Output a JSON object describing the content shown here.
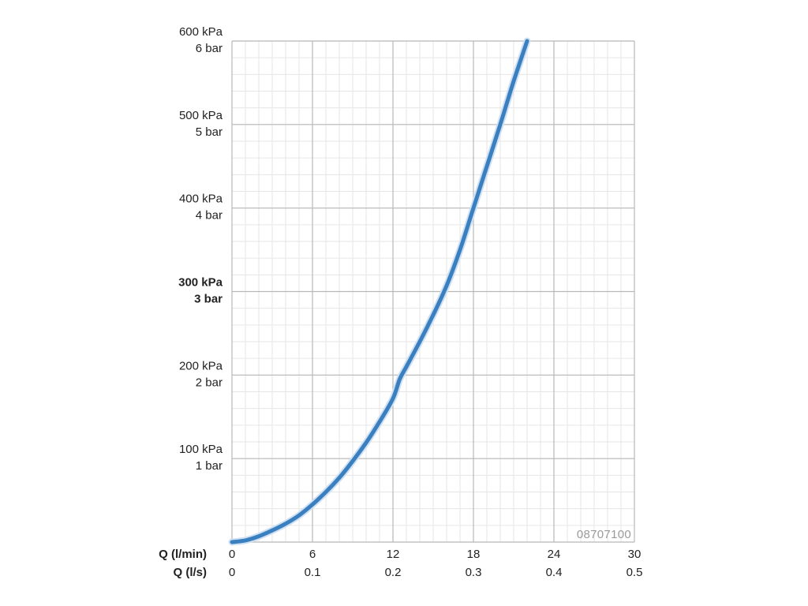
{
  "chart_data": {
    "type": "line",
    "y_tick_labels": [
      {
        "kpa": "",
        "bar": ""
      },
      {
        "kpa": "100 kPa",
        "bar": "1 bar"
      },
      {
        "kpa": "200 kPa",
        "bar": "2 bar"
      },
      {
        "kpa": "300 kPa",
        "bar": "3 bar",
        "bold": true
      },
      {
        "kpa": "400 kPa",
        "bar": "4 bar"
      },
      {
        "kpa": "500 kPa",
        "bar": "5 bar"
      },
      {
        "kpa": "600 kPa",
        "bar": "6 bar"
      }
    ],
    "y_values": [
      0,
      100,
      200,
      300,
      400,
      500,
      600
    ],
    "x_axis_primary": {
      "label": "Q (l/min)",
      "ticks": [
        "0",
        "6",
        "12",
        "18",
        "24",
        "30"
      ],
      "values": [
        0,
        6,
        12,
        18,
        24,
        30
      ]
    },
    "x_axis_secondary": {
      "label": "Q (l/s)",
      "ticks": [
        "0",
        "0.1",
        "0.2",
        "0.3",
        "0.4",
        "0.5"
      ]
    },
    "xlim": [
      0,
      30
    ],
    "ylim": [
      0,
      600
    ],
    "grid": true,
    "series": [
      {
        "color": "#3a80c1",
        "x": [
          0,
          1,
          2,
          3,
          4,
          5,
          6,
          7,
          8,
          9,
          10,
          11,
          12,
          12.5,
          13,
          14,
          15,
          16,
          17,
          18,
          19,
          20,
          21,
          22
        ],
        "y": [
          0,
          2,
          7,
          14,
          22,
          32,
          45,
          60,
          77,
          97,
          119,
          144,
          172,
          195,
          210,
          240,
          272,
          307,
          350,
          400,
          450,
          500,
          552,
          600
        ]
      }
    ],
    "annotation": "08707100"
  }
}
